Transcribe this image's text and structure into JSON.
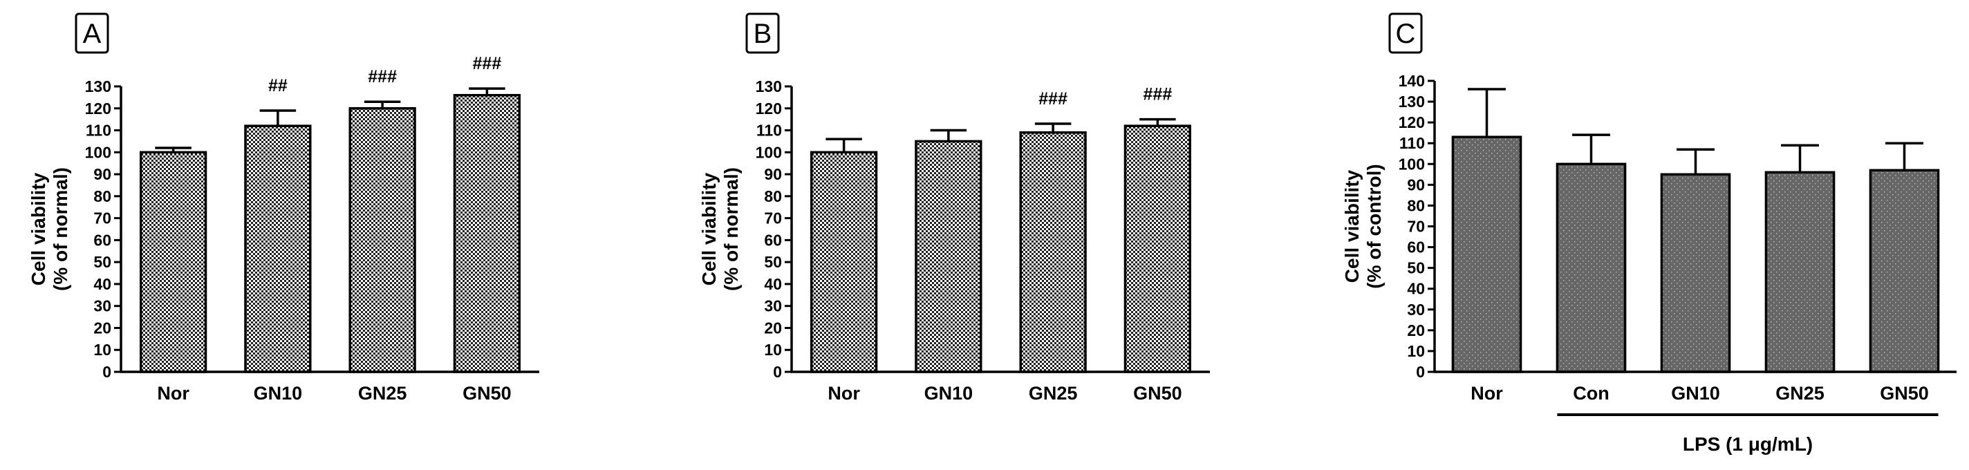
{
  "chart_data": [
    {
      "type": "bar",
      "panel_label": "A",
      "categories": [
        "Nor",
        "GN10",
        "GN25",
        "GN50"
      ],
      "values": [
        100,
        112,
        120,
        126
      ],
      "errors": [
        2,
        7,
        3,
        3
      ],
      "significance": [
        "",
        "##",
        "###",
        "###"
      ],
      "ylabel_line1": "Cell viability",
      "ylabel_line2": "(% of normal)",
      "ylim": [
        0,
        130
      ],
      "yticks": [
        0,
        10,
        20,
        30,
        40,
        50,
        60,
        70,
        80,
        90,
        100,
        110,
        120,
        130
      ],
      "bar_pattern": "checkerboard",
      "grid": false
    },
    {
      "type": "bar",
      "panel_label": "B",
      "categories": [
        "Nor",
        "GN10",
        "GN25",
        "GN50"
      ],
      "values": [
        100,
        105,
        109,
        112
      ],
      "errors": [
        6,
        5,
        4,
        3
      ],
      "significance": [
        "",
        "",
        "###",
        "###"
      ],
      "ylabel_line1": "Cell viability",
      "ylabel_line2": "(% of normal)",
      "ylim": [
        0,
        130
      ],
      "yticks": [
        0,
        10,
        20,
        30,
        40,
        50,
        60,
        70,
        80,
        90,
        100,
        110,
        120,
        130
      ],
      "bar_pattern": "checkerboard",
      "grid": false
    },
    {
      "type": "bar",
      "panel_label": "C",
      "categories": [
        "Nor",
        "Con",
        "GN10",
        "GN25",
        "GN50"
      ],
      "values": [
        113,
        100,
        95,
        96,
        97
      ],
      "errors": [
        23,
        14,
        12,
        13,
        13
      ],
      "significance": [
        "",
        "",
        "",
        "",
        ""
      ],
      "ylabel_line1": "Cell viability",
      "ylabel_line2": "(% of control)",
      "ylim": [
        0,
        140
      ],
      "yticks": [
        0,
        10,
        20,
        30,
        40,
        50,
        60,
        70,
        80,
        90,
        100,
        110,
        120,
        130,
        140
      ],
      "group_label": "LPS (1 μg/mL)",
      "group_span": [
        "Con",
        "GN50"
      ],
      "bar_pattern": "dotted-gray",
      "grid": false
    }
  ]
}
